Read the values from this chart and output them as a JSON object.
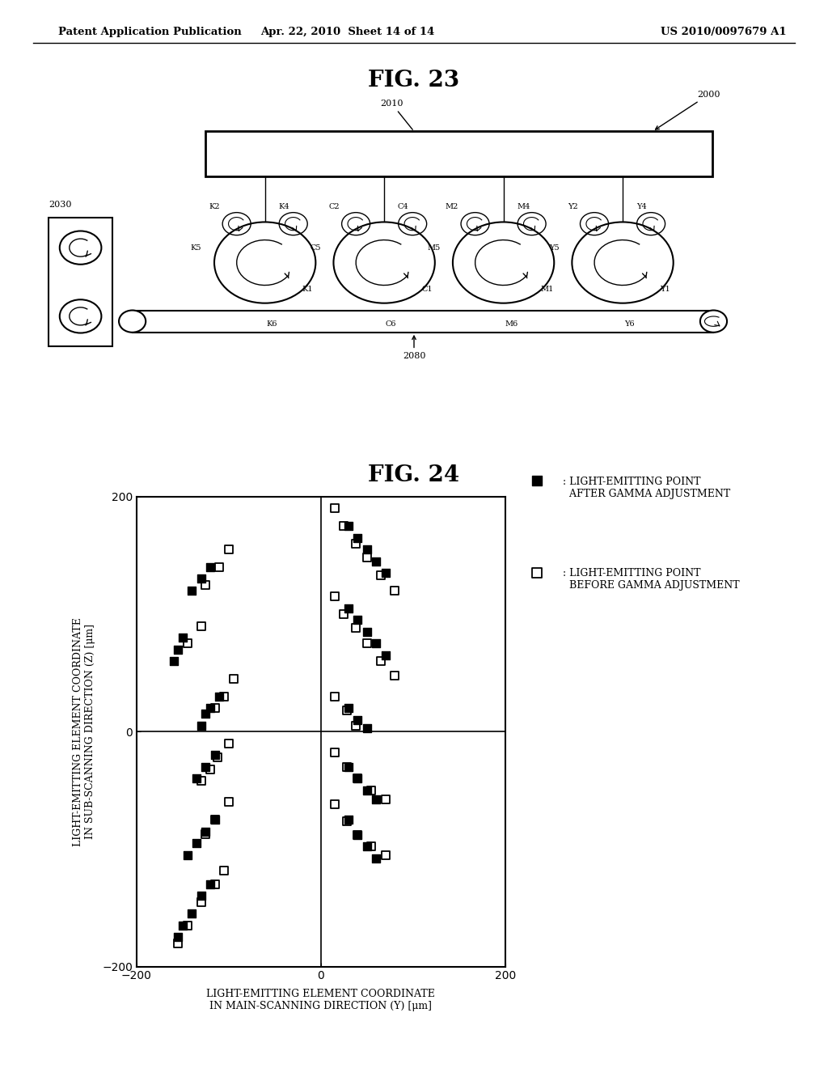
{
  "header_left": "Patent Application Publication",
  "header_center": "Apr. 22, 2010  Sheet 14 of 14",
  "header_right": "US 2010/0097679 A1",
  "fig23_title": "FIG. 23",
  "fig24_title": "FIG. 24",
  "xlabel": "LIGHT-EMITTING ELEMENT COORDINATE\nIN MAIN-SCANNING DIRECTION (Y) [μm]",
  "ylabel": "LIGHT-EMITTING ELEMENT COORDINATE\nIN SUB-SCANNING DIRECTION (Z) [μm]",
  "xlim": [
    -200,
    200
  ],
  "ylim": [
    -200,
    200
  ],
  "xticks": [
    -200,
    0,
    200
  ],
  "yticks": [
    -200,
    0,
    200
  ],
  "background": "#ffffff",
  "scatter_filled": [
    [
      -120,
      140
    ],
    [
      -130,
      130
    ],
    [
      -140,
      120
    ],
    [
      -150,
      80
    ],
    [
      -155,
      70
    ],
    [
      -160,
      60
    ],
    [
      -110,
      30
    ],
    [
      -120,
      20
    ],
    [
      -125,
      15
    ],
    [
      -130,
      5
    ],
    [
      -115,
      -20
    ],
    [
      -125,
      -30
    ],
    [
      -135,
      -40
    ],
    [
      -115,
      -75
    ],
    [
      -125,
      -85
    ],
    [
      -135,
      -95
    ],
    [
      -145,
      -105
    ],
    [
      -120,
      -130
    ],
    [
      -130,
      -140
    ],
    [
      -140,
      -155
    ],
    [
      -150,
      -165
    ],
    [
      -155,
      -175
    ],
    [
      30,
      175
    ],
    [
      40,
      165
    ],
    [
      50,
      155
    ],
    [
      60,
      145
    ],
    [
      70,
      135
    ],
    [
      30,
      105
    ],
    [
      40,
      95
    ],
    [
      50,
      85
    ],
    [
      60,
      75
    ],
    [
      70,
      65
    ],
    [
      30,
      20
    ],
    [
      40,
      10
    ],
    [
      50,
      3
    ],
    [
      30,
      -30
    ],
    [
      40,
      -40
    ],
    [
      50,
      -50
    ],
    [
      60,
      -58
    ],
    [
      30,
      -75
    ],
    [
      40,
      -88
    ],
    [
      50,
      -98
    ],
    [
      60,
      -108
    ]
  ],
  "scatter_open": [
    [
      -100,
      155
    ],
    [
      -110,
      140
    ],
    [
      -125,
      125
    ],
    [
      -130,
      90
    ],
    [
      -145,
      75
    ],
    [
      -95,
      45
    ],
    [
      -105,
      30
    ],
    [
      -115,
      20
    ],
    [
      -100,
      -10
    ],
    [
      -112,
      -22
    ],
    [
      -120,
      -32
    ],
    [
      -130,
      -42
    ],
    [
      -100,
      -60
    ],
    [
      -115,
      -75
    ],
    [
      -125,
      -87
    ],
    [
      -105,
      -118
    ],
    [
      -115,
      -130
    ],
    [
      -130,
      -145
    ],
    [
      -145,
      -165
    ],
    [
      -155,
      -180
    ],
    [
      15,
      190
    ],
    [
      25,
      175
    ],
    [
      38,
      160
    ],
    [
      50,
      148
    ],
    [
      65,
      133
    ],
    [
      80,
      120
    ],
    [
      15,
      115
    ],
    [
      25,
      100
    ],
    [
      38,
      88
    ],
    [
      50,
      75
    ],
    [
      65,
      60
    ],
    [
      80,
      48
    ],
    [
      15,
      30
    ],
    [
      28,
      18
    ],
    [
      38,
      5
    ],
    [
      15,
      -18
    ],
    [
      28,
      -30
    ],
    [
      40,
      -40
    ],
    [
      55,
      -50
    ],
    [
      70,
      -58
    ],
    [
      15,
      -62
    ],
    [
      28,
      -76
    ],
    [
      40,
      -88
    ],
    [
      55,
      -98
    ],
    [
      70,
      -105
    ]
  ]
}
